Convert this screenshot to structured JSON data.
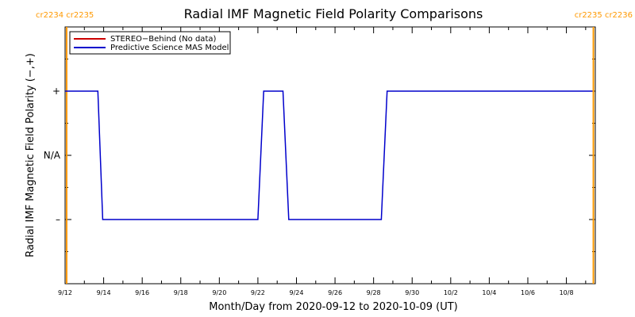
{
  "chart_data": {
    "type": "line",
    "title": "Radial IMF Magnetic Field Polarity Comparisons",
    "xlabel": "Month/Day from 2020-09-12 to 2020-10-09 (UT)",
    "ylabel": "Radial IMF Magnetic Field Polarity (−,+)",
    "xlim_days": [
      0,
      27.5
    ],
    "ylim": [
      -2,
      2
    ],
    "x_ticks": [
      {
        "day": 0,
        "label": "9/12"
      },
      {
        "day": 2,
        "label": "9/14"
      },
      {
        "day": 4,
        "label": "9/16"
      },
      {
        "day": 6,
        "label": "9/18"
      },
      {
        "day": 8,
        "label": "9/20"
      },
      {
        "day": 10,
        "label": "9/22"
      },
      {
        "day": 12,
        "label": "9/24"
      },
      {
        "day": 14,
        "label": "9/26"
      },
      {
        "day": 16,
        "label": "9/28"
      },
      {
        "day": 18,
        "label": "9/30"
      },
      {
        "day": 20,
        "label": "10/2"
      },
      {
        "day": 22,
        "label": "10/4"
      },
      {
        "day": 24,
        "label": "10/6"
      },
      {
        "day": 26,
        "label": "10/8"
      }
    ],
    "y_ticks": [
      {
        "value": 1,
        "label": "+"
      },
      {
        "value": 0,
        "label": "N/A"
      },
      {
        "value": -1,
        "label": "–"
      }
    ],
    "legend_position": "top-left",
    "series": [
      {
        "name": "STEREO−Behind (No data)",
        "color": "#cc0000",
        "points": []
      },
      {
        "name": "Predictive Science MAS Model",
        "color": "#0000cc",
        "points": [
          [
            0,
            1
          ],
          [
            1.7,
            1
          ],
          [
            1.95,
            -1
          ],
          [
            10.0,
            -1
          ],
          [
            10.3,
            1
          ],
          [
            11.3,
            1
          ],
          [
            11.6,
            -1
          ],
          [
            16.4,
            -1
          ],
          [
            16.7,
            1
          ],
          [
            27.35,
            1
          ]
        ]
      }
    ],
    "carrington_markers": [
      {
        "day": 0.08,
        "label": "cr2234 cr2235",
        "anchor": "left"
      },
      {
        "day": 27.4,
        "label": "cr2235 cr2236",
        "anchor": "right"
      }
    ],
    "marker_color": "#ff9900"
  }
}
